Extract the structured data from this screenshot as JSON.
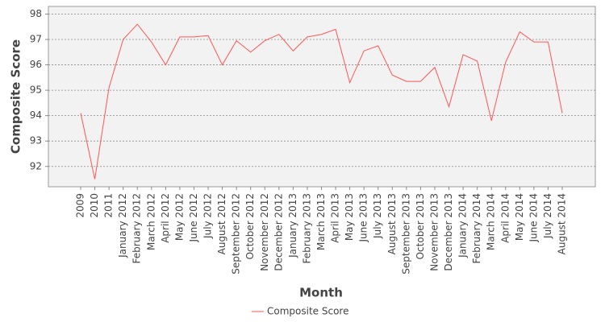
{
  "chart_data": {
    "type": "line",
    "x_label": "Month",
    "y_label": "Composite Score",
    "categories": [
      "2009",
      "2010",
      "2011",
      "January 2012",
      "February 2012",
      "March 2012",
      "April 2012",
      "May 2012",
      "June 2012",
      "July 2012",
      "August 2012",
      "September 2012",
      "October 2012",
      "November 2012",
      "December 2012",
      "January 2013",
      "February 2013",
      "March 2013",
      "April 2013",
      "May 2013",
      "June 2013",
      "July 2013",
      "August 2013",
      "September 2013",
      "October 2013",
      "November 2013",
      "December 2013",
      "January 2014",
      "February 2014",
      "March 2014",
      "April 2014",
      "May 2014",
      "June 2014",
      "July 2014",
      "August 2014"
    ],
    "series": [
      {
        "name": "Composite Score",
        "color": "#ff5555",
        "values": [
          94.1,
          91.5,
          95.1,
          97.0,
          97.6,
          96.9,
          96.0,
          97.1,
          97.1,
          97.15,
          96.0,
          96.95,
          96.5,
          96.95,
          97.2,
          96.55,
          97.1,
          97.2,
          97.4,
          95.3,
          96.55,
          96.75,
          95.6,
          95.35,
          95.35,
          95.9,
          94.35,
          96.4,
          96.15,
          93.8,
          96.1,
          97.3,
          96.9,
          96.9,
          94.1
        ]
      }
    ],
    "ylim": [
      91.2,
      98.3
    ],
    "yticks": [
      92,
      93,
      94,
      95,
      96,
      97,
      98
    ],
    "grid": true,
    "legend": "bottom"
  }
}
